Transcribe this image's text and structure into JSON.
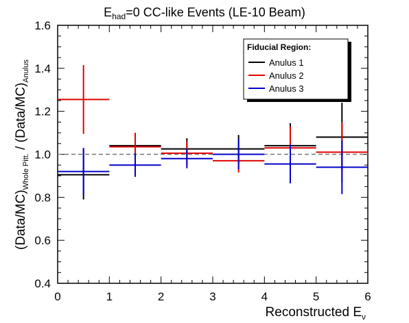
{
  "chart_data": {
    "type": "scatter",
    "style": "step-with-errorbars",
    "title": {
      "base": "E",
      "sub": "had",
      "rest": "=0 CC-like Events (LE-10 Beam)"
    },
    "xlabel": {
      "base": "Reconstructed E",
      "sub": "ν"
    },
    "ylabel": {
      "p1": "(Data/MC)",
      "s1": "Whole Pitt.",
      "p2": " / (Data/MC)",
      "s2": "Anulus"
    },
    "xlim": [
      0,
      6
    ],
    "ylim": [
      0.4,
      1.6
    ],
    "xticks": [
      0,
      1,
      2,
      3,
      4,
      5,
      6
    ],
    "xtick_labels": [
      "0",
      "1",
      "2",
      "3",
      "4",
      "5",
      "6"
    ],
    "yticks": [
      0.4,
      0.6,
      0.8,
      1.0,
      1.2,
      1.4,
      1.6
    ],
    "ytick_labels": [
      "0.4",
      "0.6",
      "0.8",
      "1.0",
      "1.2",
      "1.4",
      "1.6"
    ],
    "reference_line": {
      "y": 1.0,
      "style": "dashed"
    },
    "bins": [
      [
        0,
        1
      ],
      [
        1,
        2
      ],
      [
        2,
        3
      ],
      [
        3,
        4
      ],
      [
        4,
        5
      ],
      [
        5,
        6
      ]
    ],
    "x": [
      0.5,
      1.5,
      2.5,
      3.5,
      4.5,
      5.5
    ],
    "legend": {
      "title": "Fiducial Region:",
      "placement": "top-right"
    },
    "series": [
      {
        "name": "Anulus 1",
        "color": "#000000",
        "values": [
          0.905,
          1.04,
          1.025,
          1.025,
          1.04,
          1.08
        ],
        "errors": [
          0.115,
          0.06,
          0.05,
          0.065,
          0.105,
          0.16
        ]
      },
      {
        "name": "Anulus 2",
        "color": "#e00000",
        "values": [
          1.255,
          1.035,
          1.005,
          0.97,
          1.03,
          1.01
        ],
        "errors": [
          0.16,
          0.065,
          0.055,
          0.055,
          0.1,
          0.14
        ]
      },
      {
        "name": "Anulus 3",
        "color": "#0000cc",
        "values": [
          0.92,
          0.95,
          0.98,
          1.0,
          0.955,
          0.94
        ],
        "errors": [
          0.11,
          0.055,
          0.045,
          0.07,
          0.09,
          0.125
        ]
      }
    ]
  }
}
